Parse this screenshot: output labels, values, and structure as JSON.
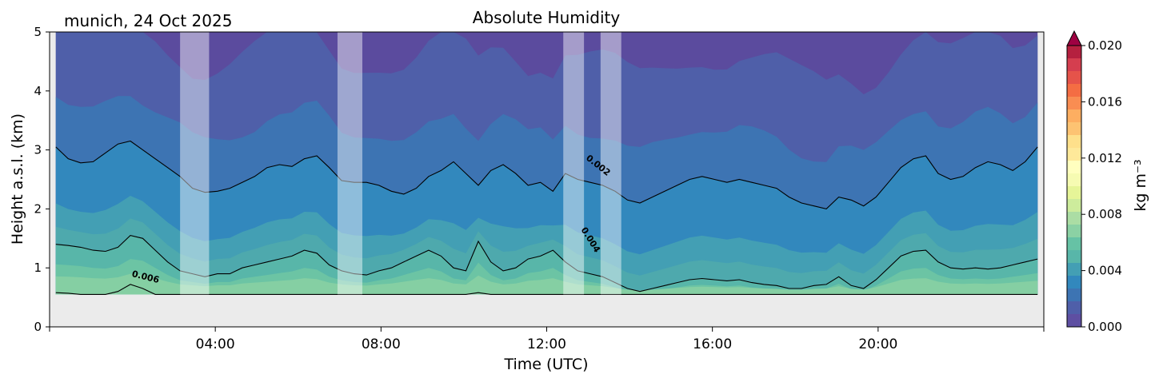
{
  "chart_data": {
    "type": "heatmap",
    "title": "Absolute Humidity",
    "subtitle": "munich, 24 Oct 2025",
    "xlabel": "Time (UTC)",
    "ylabel": "Height a.s.l. (km)",
    "x_unit": "hours UTC",
    "xlim": [
      0,
      24
    ],
    "ylim": [
      0,
      5
    ],
    "x_ticks": [
      {
        "value": 4,
        "label": "04:00"
      },
      {
        "value": 8,
        "label": "08:00"
      },
      {
        "value": 12,
        "label": "12:00"
      },
      {
        "value": 16,
        "label": "16:00"
      },
      {
        "value": 20,
        "label": "20:00"
      }
    ],
    "y_ticks": [
      {
        "value": 0,
        "label": "0"
      },
      {
        "value": 1,
        "label": "1"
      },
      {
        "value": 2,
        "label": "2"
      },
      {
        "value": 3,
        "label": "3"
      },
      {
        "value": 4,
        "label": "4"
      },
      {
        "value": 5,
        "label": "5"
      }
    ],
    "data_time_range": [
      0.15,
      23.85
    ],
    "lowest_height_km": 0.55,
    "colorbar": {
      "label": "kg m⁻³",
      "range": [
        0.0,
        0.02
      ],
      "extend": "max",
      "ticks": [
        "0.000",
        "0.004",
        "0.008",
        "0.012",
        "0.016",
        "0.020"
      ],
      "tick_values": [
        0.0,
        0.004,
        0.008,
        0.012,
        0.016,
        0.02
      ],
      "colors": [
        "#5e4fa2",
        "#4f5fa9",
        "#3d74b3",
        "#3288bd",
        "#439fb4",
        "#58b6a9",
        "#66c2a5",
        "#8bd1a4",
        "#abdda4",
        "#cdec9c",
        "#e6f598",
        "#f6fbb2",
        "#ffffbf",
        "#fee99a",
        "#fee08b",
        "#fdc372",
        "#fdae61",
        "#f98d52",
        "#f46d43",
        "#e5534a",
        "#d53e4f",
        "#b5203f"
      ],
      "extend_color": "#9e0142"
    },
    "contours": [
      {
        "level": 0.002,
        "label": "0.002",
        "heights_km": [
          3.05,
          2.85,
          2.78,
          2.8,
          2.95,
          3.1,
          3.15,
          3.0,
          2.85,
          2.7,
          2.55,
          2.35,
          2.28,
          2.3,
          2.35,
          2.45,
          2.55,
          2.7,
          2.75,
          2.72,
          2.85,
          2.9,
          2.7,
          2.48,
          2.45,
          2.45,
          2.4,
          2.3,
          2.25,
          2.35,
          2.55,
          2.65,
          2.8,
          2.6,
          2.4,
          2.65,
          2.75,
          2.6,
          2.4,
          2.45,
          2.3,
          2.6,
          2.5,
          2.45,
          2.4,
          2.3,
          2.15,
          2.1,
          2.2,
          2.3,
          2.4,
          2.5,
          2.55,
          2.5,
          2.45,
          2.5,
          2.45,
          2.4,
          2.35,
          2.2,
          2.1,
          2.05,
          2.0,
          2.2,
          2.15,
          2.05,
          2.2,
          2.45,
          2.7,
          2.85,
          2.9,
          2.6,
          2.5,
          2.55,
          2.7,
          2.8,
          2.75,
          2.65,
          2.8,
          3.05
        ]
      },
      {
        "level": 0.004,
        "label": "0.004",
        "heights_km": [
          1.4,
          1.38,
          1.35,
          1.3,
          1.28,
          1.35,
          1.55,
          1.5,
          1.3,
          1.1,
          0.95,
          0.9,
          0.85,
          0.9,
          0.9,
          1.0,
          1.05,
          1.1,
          1.15,
          1.2,
          1.3,
          1.25,
          1.05,
          0.95,
          0.9,
          0.88,
          0.95,
          1.0,
          1.1,
          1.2,
          1.3,
          1.2,
          1.0,
          0.95,
          1.45,
          1.1,
          0.95,
          1.0,
          1.15,
          1.2,
          1.3,
          1.1,
          0.95,
          0.9,
          0.85,
          0.75,
          0.65,
          0.6,
          0.65,
          0.7,
          0.75,
          0.8,
          0.82,
          0.8,
          0.78,
          0.8,
          0.75,
          0.72,
          0.7,
          0.65,
          0.65,
          0.7,
          0.72,
          0.85,
          0.7,
          0.65,
          0.8,
          1.0,
          1.2,
          1.28,
          1.3,
          1.1,
          1.0,
          0.98,
          1.0,
          0.98,
          1.0,
          1.05,
          1.1,
          1.15
        ]
      },
      {
        "level": 0.006,
        "label": "0.006",
        "heights_km": [
          0.58,
          0.57,
          0.55,
          0.55,
          0.55,
          0.6,
          0.72,
          0.65,
          0.55,
          0.55,
          0.55,
          0.55,
          0.55,
          0.55,
          0.55,
          0.55,
          0.55,
          0.55,
          0.55,
          0.55,
          0.55,
          0.55,
          0.55,
          0.55,
          0.55,
          0.55,
          0.55,
          0.55,
          0.55,
          0.55,
          0.55,
          0.55,
          0.55,
          0.55,
          0.58,
          0.55,
          0.55,
          0.55,
          0.55,
          0.55,
          0.55,
          0.55,
          0.55,
          0.55,
          0.55,
          0.55,
          0.55,
          0.55,
          0.55,
          0.55,
          0.55,
          0.55,
          0.55,
          0.55,
          0.55,
          0.55,
          0.55,
          0.55,
          0.55,
          0.55,
          0.55,
          0.55,
          0.55,
          0.55,
          0.55,
          0.55,
          0.55,
          0.55,
          0.55,
          0.55,
          0.55,
          0.55,
          0.55,
          0.55,
          0.55,
          0.55,
          0.55,
          0.55,
          0.55,
          0.55
        ]
      }
    ],
    "contour_labels": [
      {
        "text": "0.002",
        "time": 13.2,
        "height": 2.7,
        "angle": 38
      },
      {
        "text": "0.004",
        "time": 13.0,
        "height": 1.45,
        "angle": 58
      },
      {
        "text": "0.006",
        "time": 2.3,
        "height": 0.8,
        "angle": 14
      }
    ],
    "gaps": [
      [
        3.15,
        3.85
      ],
      [
        6.95,
        7.55
      ],
      [
        12.4,
        12.9
      ],
      [
        13.3,
        13.8
      ]
    ]
  }
}
